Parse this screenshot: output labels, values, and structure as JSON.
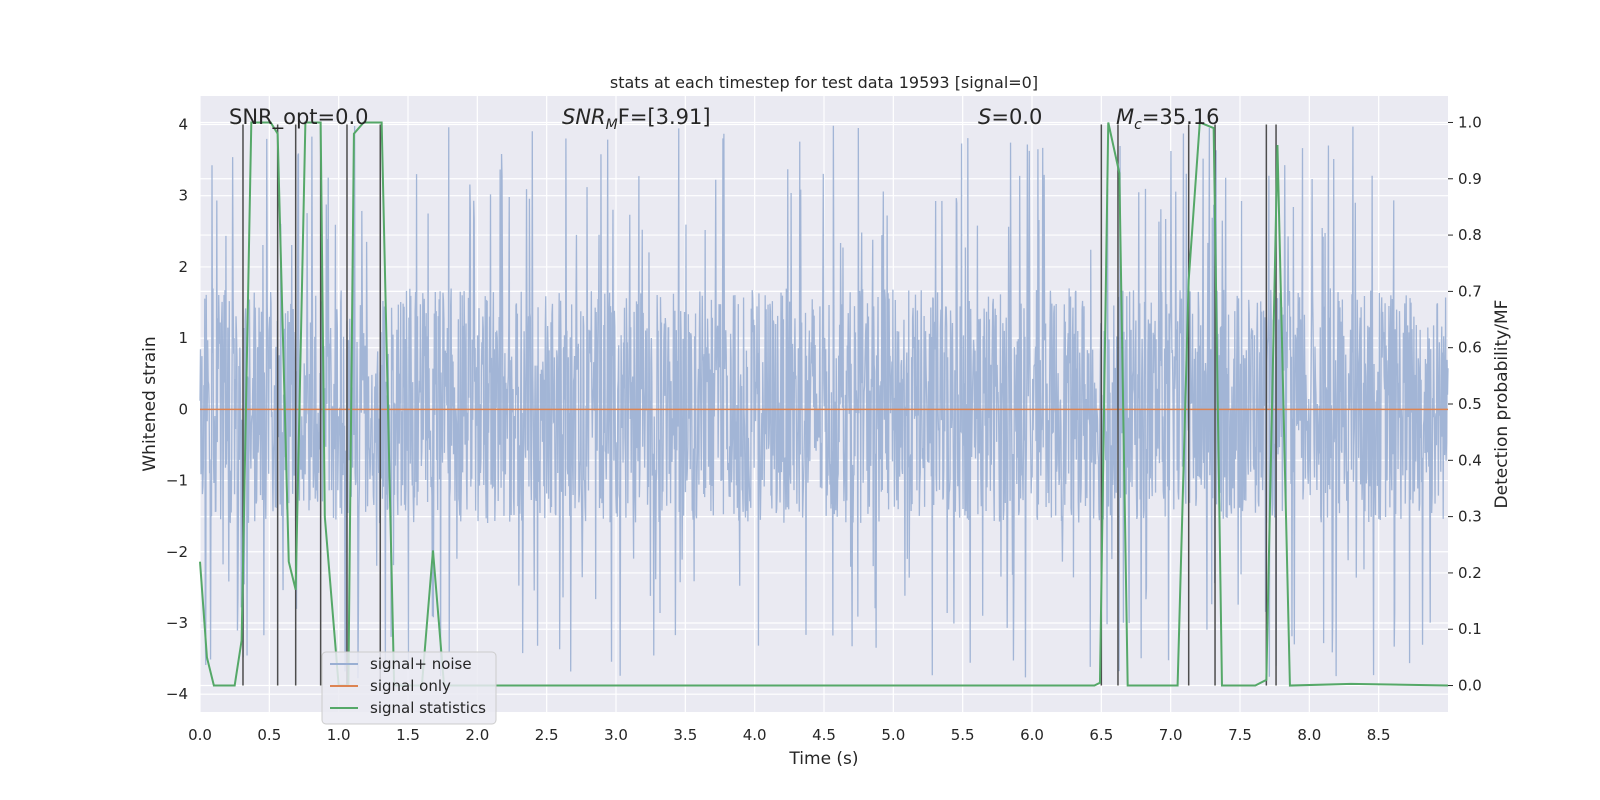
{
  "chart_data": {
    "type": "line",
    "title": "stats at each timestep for test data 19593 [signal=0]",
    "xlabel": "Time (s)",
    "ylabel": "Whitened strain",
    "ylabel_right": "Detection probability/MF",
    "xlim": [
      0.0,
      9.0
    ],
    "ylim": [
      -4.25,
      4.4
    ],
    "ylim_right": [
      -0.047,
      1.047
    ],
    "x_ticks": [
      "0.0",
      "0.5",
      "1.0",
      "1.5",
      "2.0",
      "2.5",
      "3.0",
      "3.5",
      "4.0",
      "4.5",
      "5.0",
      "5.5",
      "6.0",
      "6.5",
      "7.0",
      "7.5",
      "8.0",
      "8.5"
    ],
    "y_ticks": [
      "4",
      "3",
      "2",
      "1",
      "0",
      "−1",
      "−2",
      "−3",
      "−4"
    ],
    "y_ticks_right": [
      "1.0",
      "0.9",
      "0.8",
      "0.7",
      "0.6",
      "0.5",
      "0.4",
      "0.3",
      "0.2",
      "0.1",
      "0.0"
    ],
    "grid": true,
    "legend_position": "lower-left",
    "annotations": {
      "snr_opt": "SNR_opt=0.0",
      "snr_mf_base": "SNR",
      "snr_mf_sub": "M",
      "snr_mf_rest": "F=[3.91]",
      "s_italic": "S",
      "s_rest": "=0.0",
      "mc_italic": "M",
      "mc_sub": "c",
      "mc_rest": "=35.16"
    },
    "series": [
      {
        "name": "signal+ noise",
        "color": "#9aafd3",
        "kind": "noise",
        "typical_range": [
          -1.6,
          1.7
        ],
        "peak_range": [
          -3.8,
          4.0
        ]
      },
      {
        "name": "signal only",
        "color": "#dd8452",
        "x": [
          0.0,
          9.0
        ],
        "y": [
          0.0,
          0.0
        ]
      },
      {
        "name": "signal statistics",
        "color": "#55a868",
        "axis": "right",
        "x": [
          0.0,
          0.05,
          0.1,
          0.25,
          0.3,
          0.37,
          0.51,
          0.56,
          0.64,
          0.69,
          0.76,
          0.87,
          0.9,
          1.0,
          1.07,
          1.11,
          1.18,
          1.31,
          1.4,
          1.5,
          1.6,
          1.68,
          1.76,
          1.85,
          6.45,
          6.49,
          6.55,
          6.63,
          6.69,
          7.05,
          7.13,
          7.21,
          7.31,
          7.37,
          7.61,
          7.69,
          7.77,
          7.86,
          8.3,
          9.0
        ],
        "y": [
          0.22,
          0.05,
          0.0,
          0.0,
          0.08,
          1.0,
          1.0,
          0.98,
          0.22,
          0.17,
          1.0,
          1.0,
          0.3,
          0.0,
          0.0,
          0.98,
          1.0,
          1.0,
          0.0,
          0.0,
          0.0,
          0.24,
          0.0,
          0.0,
          0.0,
          0.005,
          1.0,
          0.91,
          0.0,
          0.0,
          0.72,
          1.0,
          0.99,
          0.0,
          0.0,
          0.01,
          0.96,
          0.0,
          0.003,
          0.0
        ]
      }
    ],
    "vertical_markers_x": [
      0.31,
      0.56,
      0.69,
      0.87,
      1.06,
      1.3,
      6.5,
      6.62,
      7.13,
      7.32,
      7.69,
      7.76
    ]
  }
}
